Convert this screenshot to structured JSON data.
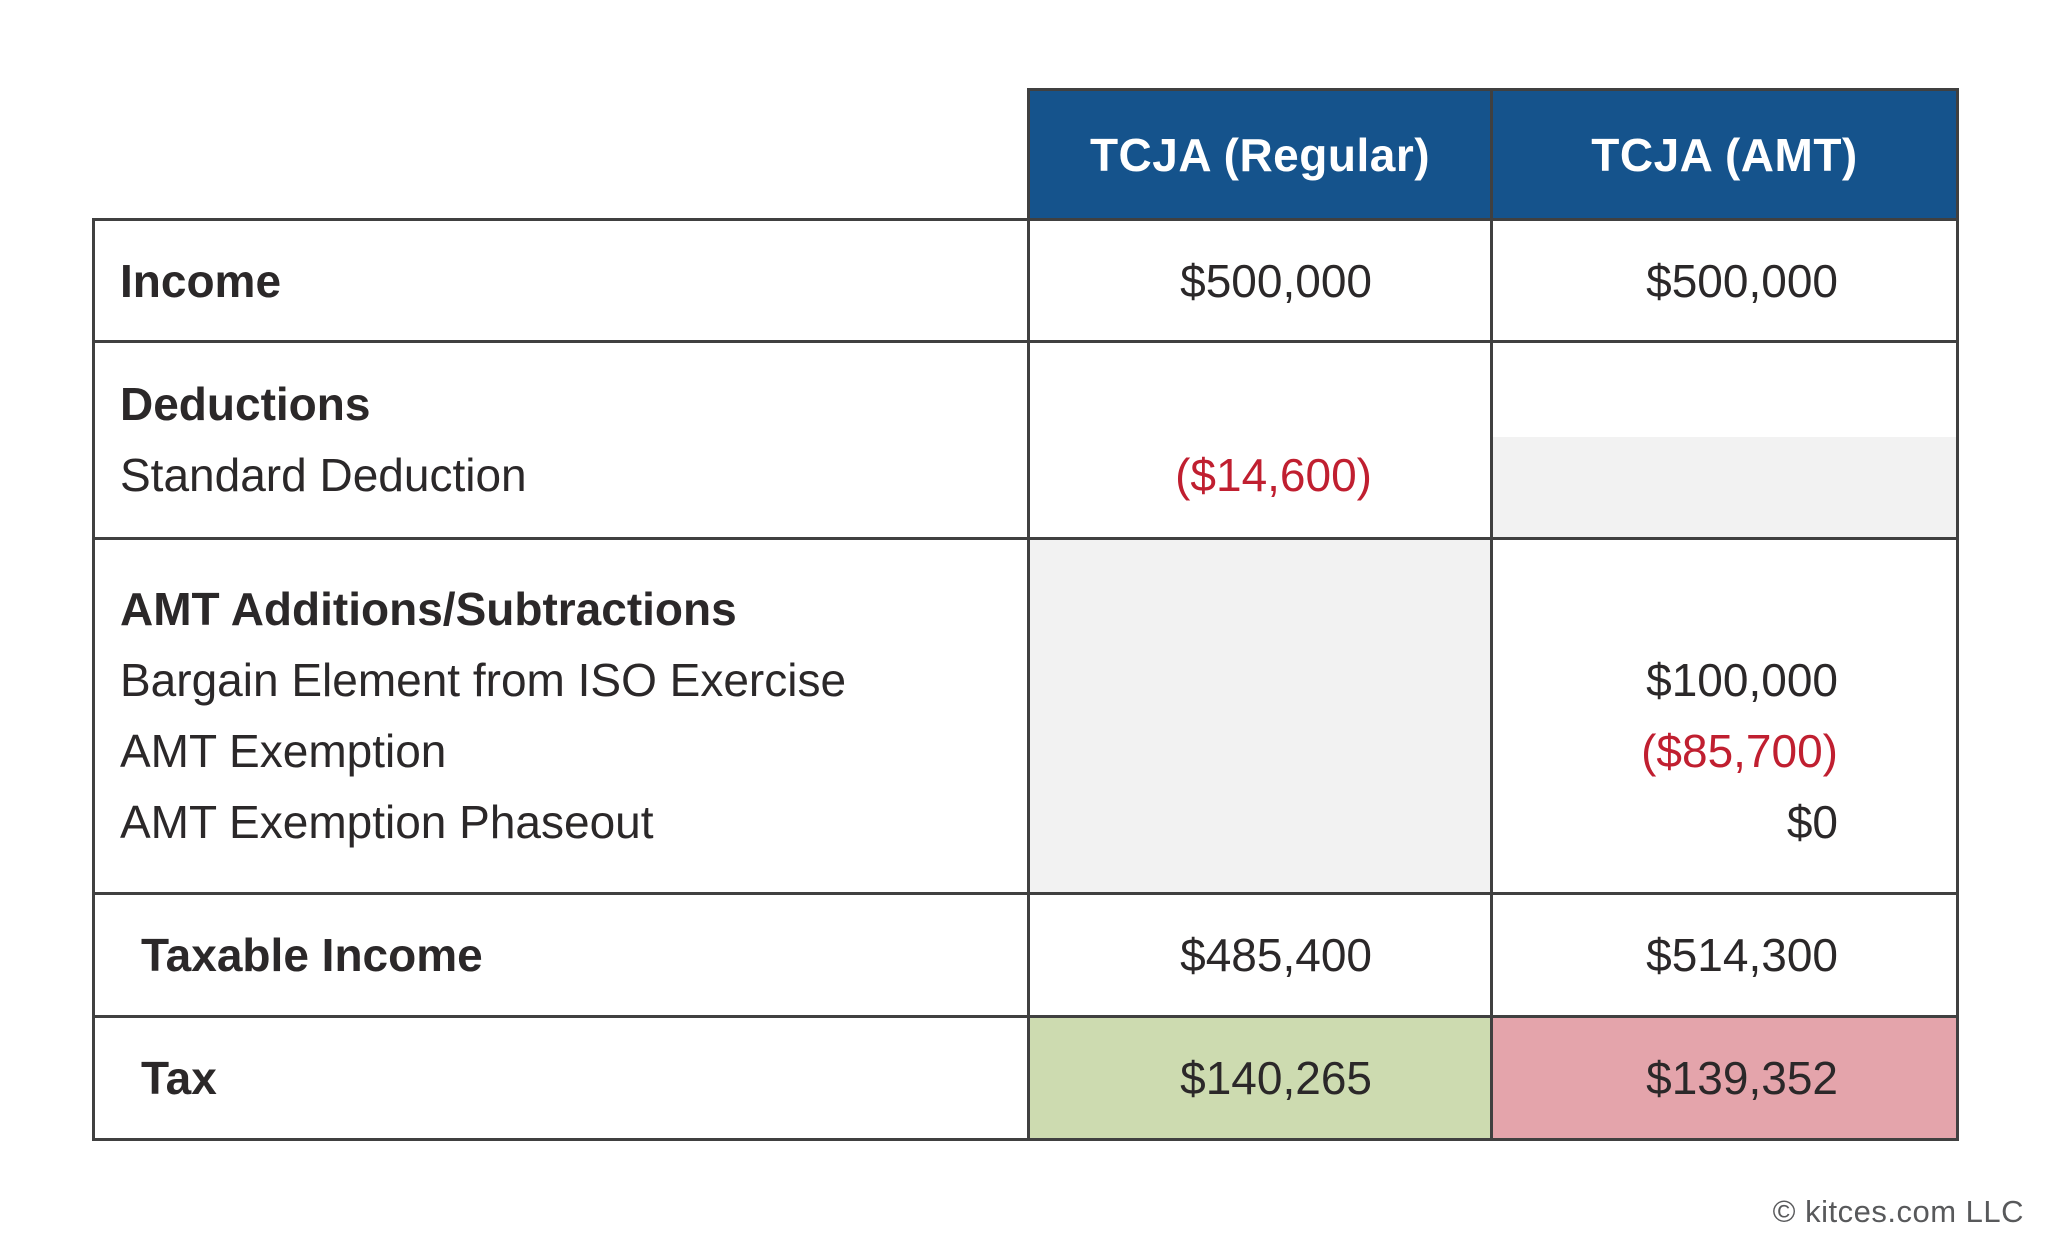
{
  "table": {
    "header": {
      "regular": "TCJA (Regular)",
      "amt": "TCJA (AMT)"
    },
    "income": {
      "label": "Income",
      "regular": "$500,000",
      "amt": "$500,000"
    },
    "deductions": {
      "label": "Deductions",
      "sub": "Standard Deduction",
      "regular_sub": "($14,600)"
    },
    "amt_adjustments": {
      "label": "AMT Additions/Subtractions",
      "line1": "Bargain Element from ISO Exercise",
      "line1_amt": "$100,000",
      "line2": "AMT Exemption",
      "line2_amt": "($85,700)",
      "line3": "AMT Exemption Phaseout",
      "line3_amt": "$0"
    },
    "taxable_income": {
      "label": "Taxable Income",
      "regular": "$485,400",
      "amt": "$514,300"
    },
    "tax": {
      "label": "Tax",
      "regular": "$140,265",
      "amt": "$139,352"
    }
  },
  "footer": {
    "copyright": "© kitces.com LLC"
  },
  "colors": {
    "header_bg": "#15538c",
    "negative": "#c01f30",
    "tax_regular_bg": "#cddbb0",
    "tax_amt_bg": "#e4a4ab",
    "muted_cell_bg": "#f2f2f2",
    "border": "#404040",
    "text": "#2b2829",
    "copyright": "#58595b"
  },
  "chart_data": {
    "type": "table",
    "title": "TCJA Regular vs AMT tax calculation comparison",
    "columns": [
      "",
      "TCJA (Regular)",
      "TCJA (AMT)"
    ],
    "rows": [
      {
        "label": "Income",
        "regular": "$500,000",
        "amt": "$500,000"
      },
      {
        "label": "Deductions",
        "regular": "",
        "amt": ""
      },
      {
        "label": "Standard Deduction",
        "regular": "($14,600)",
        "amt": ""
      },
      {
        "label": "AMT Additions/Subtractions",
        "regular": "",
        "amt": ""
      },
      {
        "label": "Bargain Element from ISO Exercise",
        "regular": "",
        "amt": "$100,000"
      },
      {
        "label": "AMT Exemption",
        "regular": "",
        "amt": "($85,700)"
      },
      {
        "label": "AMT Exemption Phaseout",
        "regular": "",
        "amt": "$0"
      },
      {
        "label": "Taxable Income",
        "regular": "$485,400",
        "amt": "$514,300"
      },
      {
        "label": "Tax",
        "regular": "$140,265",
        "amt": "$139,352"
      }
    ],
    "layout_hints": {
      "negative_values_style": "red text in parentheses",
      "tax_regular_highlight": "green",
      "tax_amt_highlight": "pink",
      "not_applicable_cells": "light gray fill",
      "header_style": "dark blue background, white bold text"
    }
  }
}
